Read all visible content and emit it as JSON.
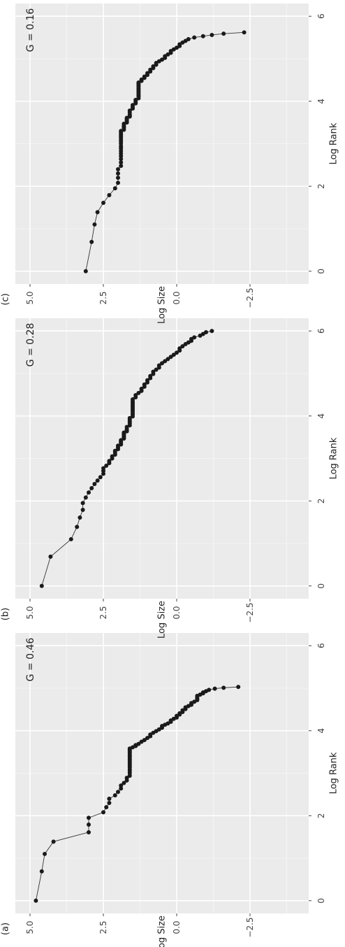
{
  "chart_data": [
    {
      "type": "line",
      "panel_label": "(a)",
      "annotation": "G = 0.46",
      "xlabel": "Log Rank",
      "ylabel": "Log Size",
      "xlim": [
        -0.3,
        6.3
      ],
      "ylim": [
        -4.5,
        5.5
      ],
      "x_ticks": [
        0,
        2,
        4,
        6
      ],
      "x_tick_labels": [
        "0",
        "2",
        "4",
        "6"
      ],
      "y_ticks": [
        5.0,
        2.5,
        0.0,
        -2.5
      ],
      "y_tick_labels": [
        "5.0",
        "2.5",
        "0.0",
        "-2.5"
      ],
      "grid": true,
      "series": [
        {
          "x": [
            0,
            0.69,
            1.1,
            1.39,
            1.61,
            1.79,
            1.95,
            2.08,
            2.2,
            2.3,
            2.4,
            2.48,
            2.56,
            2.64,
            2.71,
            2.77,
            2.83,
            2.89,
            2.94,
            3.0,
            3.05,
            3.09,
            3.14,
            3.18,
            3.22,
            3.26,
            3.3,
            3.33,
            3.37,
            3.4,
            3.43,
            3.47,
            3.5,
            3.53,
            3.56,
            3.58,
            3.61,
            3.64,
            3.66,
            3.69,
            3.74,
            3.78,
            3.83,
            3.87,
            3.91,
            3.95,
            3.99,
            4.03,
            4.07,
            4.11,
            4.14,
            4.17,
            4.21,
            4.24,
            4.28,
            4.31,
            4.35,
            4.38,
            4.41,
            4.44,
            4.48,
            4.51,
            4.55,
            4.58,
            4.61,
            4.65,
            4.68,
            4.72,
            4.75,
            4.79,
            4.82,
            4.85,
            4.88,
            4.9,
            4.93,
            4.96,
            4.99,
            5.01,
            5.03
          ],
          "y": [
            4.8,
            4.6,
            4.5,
            4.2,
            3.0,
            3.0,
            3.0,
            2.5,
            2.4,
            2.3,
            2.3,
            2.1,
            2.0,
            1.9,
            1.9,
            1.8,
            1.7,
            1.7,
            1.6,
            1.6,
            1.6,
            1.6,
            1.6,
            1.6,
            1.6,
            1.6,
            1.6,
            1.6,
            1.6,
            1.6,
            1.6,
            1.6,
            1.6,
            1.6,
            1.6,
            1.6,
            1.5,
            1.4,
            1.4,
            1.3,
            1.2,
            1.1,
            1.0,
            0.9,
            0.9,
            0.8,
            0.7,
            0.6,
            0.5,
            0.5,
            0.4,
            0.3,
            0.2,
            0.2,
            0.1,
            0.0,
            0.0,
            -0.1,
            -0.1,
            -0.2,
            -0.2,
            -0.3,
            -0.3,
            -0.4,
            -0.5,
            -0.5,
            -0.6,
            -0.7,
            -0.7,
            -0.7,
            -0.7,
            -0.8,
            -0.9,
            -0.9,
            -1.0,
            -1.1,
            -1.3,
            -1.6,
            -2.1
          ]
        }
      ]
    },
    {
      "type": "line",
      "panel_label": "(b)",
      "annotation": "G = 0.28",
      "xlabel": "Log Rank",
      "ylabel": "Log Size",
      "xlim": [
        -0.3,
        6.3
      ],
      "ylim": [
        -4.5,
        5.5
      ],
      "x_ticks": [
        0,
        2,
        4,
        6
      ],
      "x_tick_labels": [
        "0",
        "2",
        "4",
        "6"
      ],
      "y_ticks": [
        5.0,
        2.5,
        0.0,
        -2.5
      ],
      "y_tick_labels": [
        "5.0",
        "2.5",
        "0.0",
        "-2.5"
      ],
      "grid": true,
      "series": [
        {
          "x": [
            0,
            0.69,
            1.1,
            1.39,
            1.61,
            1.79,
            1.95,
            2.08,
            2.2,
            2.3,
            2.4,
            2.48,
            2.56,
            2.64,
            2.71,
            2.77,
            2.83,
            2.89,
            2.94,
            3.0,
            3.05,
            3.09,
            3.14,
            3.18,
            3.22,
            3.26,
            3.3,
            3.33,
            3.37,
            3.4,
            3.43,
            3.47,
            3.5,
            3.53,
            3.56,
            3.58,
            3.61,
            3.64,
            3.66,
            3.69,
            3.74,
            3.78,
            3.83,
            3.87,
            3.91,
            3.95,
            3.99,
            4.03,
            4.07,
            4.11,
            4.14,
            4.17,
            4.21,
            4.24,
            4.28,
            4.31,
            4.35,
            4.39,
            4.44,
            4.49,
            4.54,
            4.59,
            4.64,
            4.69,
            4.74,
            4.79,
            4.84,
            4.89,
            4.94,
            4.99,
            5.04,
            5.09,
            5.14,
            5.19,
            5.24,
            5.29,
            5.34,
            5.39,
            5.44,
            5.49,
            5.54,
            5.59,
            5.64,
            5.69,
            5.73,
            5.77,
            5.81,
            5.85,
            5.89,
            5.93,
            5.97,
            6.0
          ],
          "y": [
            4.6,
            4.3,
            3.6,
            3.4,
            3.3,
            3.2,
            3.2,
            3.1,
            3.0,
            2.9,
            2.8,
            2.7,
            2.6,
            2.5,
            2.5,
            2.5,
            2.4,
            2.3,
            2.3,
            2.2,
            2.2,
            2.1,
            2.1,
            2.1,
            2.0,
            2.0,
            2.0,
            1.9,
            1.9,
            1.9,
            1.9,
            1.8,
            1.8,
            1.8,
            1.8,
            1.8,
            1.8,
            1.7,
            1.7,
            1.7,
            1.7,
            1.6,
            1.6,
            1.6,
            1.6,
            1.6,
            1.5,
            1.5,
            1.5,
            1.5,
            1.5,
            1.5,
            1.5,
            1.5,
            1.5,
            1.5,
            1.5,
            1.5,
            1.4,
            1.4,
            1.3,
            1.2,
            1.2,
            1.1,
            1.1,
            1.0,
            1.0,
            0.9,
            0.9,
            0.8,
            0.8,
            0.7,
            0.6,
            0.6,
            0.5,
            0.4,
            0.3,
            0.2,
            0.1,
            0.0,
            -0.1,
            -0.1,
            -0.2,
            -0.3,
            -0.4,
            -0.5,
            -0.5,
            -0.6,
            -0.8,
            -0.9,
            -1.0,
            -1.2
          ]
        }
      ]
    },
    {
      "type": "line",
      "panel_label": "(c)",
      "annotation": "G = 0.16",
      "xlabel": "Log Rank",
      "ylabel": "Log Size",
      "xlim": [
        -0.3,
        6.3
      ],
      "ylim": [
        -4.5,
        5.5
      ],
      "x_ticks": [
        0,
        2,
        4,
        6
      ],
      "x_tick_labels": [
        "0",
        "2",
        "4",
        "6"
      ],
      "y_ticks": [
        5.0,
        2.5,
        0.0,
        -2.5
      ],
      "y_tick_labels": [
        "5.0",
        "2.5",
        "0.0",
        "-2.5"
      ],
      "grid": true,
      "series": [
        {
          "x": [
            0,
            0.69,
            1.1,
            1.39,
            1.61,
            1.79,
            1.95,
            2.08,
            2.2,
            2.3,
            2.4,
            2.48,
            2.56,
            2.64,
            2.71,
            2.77,
            2.83,
            2.89,
            2.94,
            3.0,
            3.05,
            3.09,
            3.14,
            3.18,
            3.22,
            3.26,
            3.3,
            3.33,
            3.37,
            3.4,
            3.43,
            3.47,
            3.5,
            3.53,
            3.56,
            3.58,
            3.61,
            3.64,
            3.66,
            3.69,
            3.74,
            3.78,
            3.83,
            3.87,
            3.91,
            3.95,
            3.99,
            4.03,
            4.07,
            4.11,
            4.14,
            4.17,
            4.21,
            4.24,
            4.28,
            4.31,
            4.35,
            4.38,
            4.41,
            4.44,
            4.48,
            4.51,
            4.55,
            4.58,
            4.62,
            4.66,
            4.7,
            4.74,
            4.78,
            4.82,
            4.86,
            4.9,
            4.94,
            4.98,
            5.02,
            5.06,
            5.1,
            5.14,
            5.18,
            5.22,
            5.26,
            5.3,
            5.34,
            5.38,
            5.42,
            5.46,
            5.5,
            5.53,
            5.56,
            5.59,
            5.62
          ],
          "y": [
            3.1,
            2.9,
            2.8,
            2.7,
            2.5,
            2.3,
            2.1,
            2.0,
            2.0,
            2.0,
            2.0,
            1.9,
            1.9,
            1.9,
            1.9,
            1.9,
            1.9,
            1.9,
            1.9,
            1.9,
            1.9,
            1.9,
            1.9,
            1.9,
            1.9,
            1.9,
            1.9,
            1.8,
            1.8,
            1.8,
            1.8,
            1.8,
            1.7,
            1.7,
            1.7,
            1.7,
            1.7,
            1.6,
            1.6,
            1.6,
            1.6,
            1.6,
            1.5,
            1.5,
            1.5,
            1.4,
            1.4,
            1.4,
            1.3,
            1.3,
            1.3,
            1.3,
            1.3,
            1.3,
            1.3,
            1.3,
            1.3,
            1.3,
            1.3,
            1.3,
            1.2,
            1.2,
            1.1,
            1.1,
            1.0,
            1.0,
            0.9,
            0.9,
            0.8,
            0.8,
            0.7,
            0.7,
            0.6,
            0.5,
            0.4,
            0.4,
            0.3,
            0.2,
            0.2,
            0.1,
            0.0,
            -0.1,
            -0.1,
            -0.2,
            -0.3,
            -0.4,
            -0.6,
            -0.9,
            -1.2,
            -1.6,
            -2.3
          ]
        }
      ]
    }
  ]
}
